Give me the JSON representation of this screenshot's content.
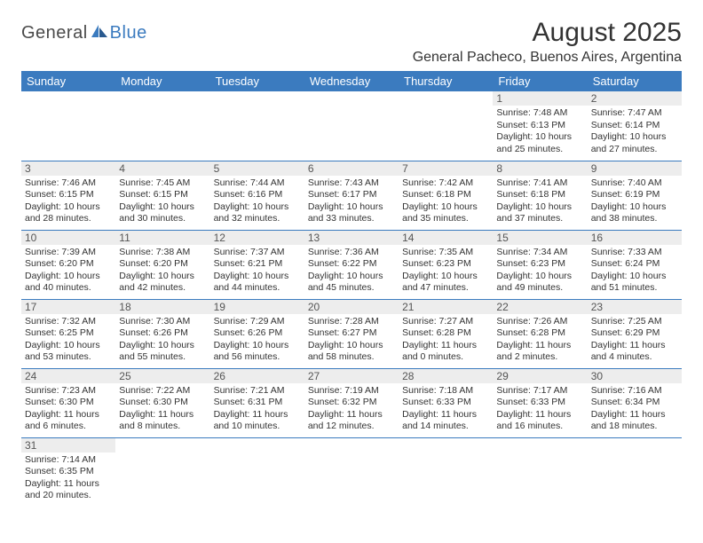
{
  "logo": {
    "text1": "General",
    "text2": "Blue"
  },
  "title": "August 2025",
  "location": "General Pacheco, Buenos Aires, Argentina",
  "colors": {
    "header_bg": "#3b7bbf",
    "header_text": "#ffffff",
    "daynum_bg": "#ededed",
    "daynum_text": "#555555",
    "body_text": "#333333",
    "divider": "#3b7bbf"
  },
  "days_of_week": [
    "Sunday",
    "Monday",
    "Tuesday",
    "Wednesday",
    "Thursday",
    "Friday",
    "Saturday"
  ],
  "weeks": [
    [
      null,
      null,
      null,
      null,
      null,
      {
        "n": "1",
        "sr": "7:48 AM",
        "ss": "6:13 PM",
        "dl": "10 hours and 25 minutes."
      },
      {
        "n": "2",
        "sr": "7:47 AM",
        "ss": "6:14 PM",
        "dl": "10 hours and 27 minutes."
      }
    ],
    [
      {
        "n": "3",
        "sr": "7:46 AM",
        "ss": "6:15 PM",
        "dl": "10 hours and 28 minutes."
      },
      {
        "n": "4",
        "sr": "7:45 AM",
        "ss": "6:15 PM",
        "dl": "10 hours and 30 minutes."
      },
      {
        "n": "5",
        "sr": "7:44 AM",
        "ss": "6:16 PM",
        "dl": "10 hours and 32 minutes."
      },
      {
        "n": "6",
        "sr": "7:43 AM",
        "ss": "6:17 PM",
        "dl": "10 hours and 33 minutes."
      },
      {
        "n": "7",
        "sr": "7:42 AM",
        "ss": "6:18 PM",
        "dl": "10 hours and 35 minutes."
      },
      {
        "n": "8",
        "sr": "7:41 AM",
        "ss": "6:18 PM",
        "dl": "10 hours and 37 minutes."
      },
      {
        "n": "9",
        "sr": "7:40 AM",
        "ss": "6:19 PM",
        "dl": "10 hours and 38 minutes."
      }
    ],
    [
      {
        "n": "10",
        "sr": "7:39 AM",
        "ss": "6:20 PM",
        "dl": "10 hours and 40 minutes."
      },
      {
        "n": "11",
        "sr": "7:38 AM",
        "ss": "6:20 PM",
        "dl": "10 hours and 42 minutes."
      },
      {
        "n": "12",
        "sr": "7:37 AM",
        "ss": "6:21 PM",
        "dl": "10 hours and 44 minutes."
      },
      {
        "n": "13",
        "sr": "7:36 AM",
        "ss": "6:22 PM",
        "dl": "10 hours and 45 minutes."
      },
      {
        "n": "14",
        "sr": "7:35 AM",
        "ss": "6:23 PM",
        "dl": "10 hours and 47 minutes."
      },
      {
        "n": "15",
        "sr": "7:34 AM",
        "ss": "6:23 PM",
        "dl": "10 hours and 49 minutes."
      },
      {
        "n": "16",
        "sr": "7:33 AM",
        "ss": "6:24 PM",
        "dl": "10 hours and 51 minutes."
      }
    ],
    [
      {
        "n": "17",
        "sr": "7:32 AM",
        "ss": "6:25 PM",
        "dl": "10 hours and 53 minutes."
      },
      {
        "n": "18",
        "sr": "7:30 AM",
        "ss": "6:26 PM",
        "dl": "10 hours and 55 minutes."
      },
      {
        "n": "19",
        "sr": "7:29 AM",
        "ss": "6:26 PM",
        "dl": "10 hours and 56 minutes."
      },
      {
        "n": "20",
        "sr": "7:28 AM",
        "ss": "6:27 PM",
        "dl": "10 hours and 58 minutes."
      },
      {
        "n": "21",
        "sr": "7:27 AM",
        "ss": "6:28 PM",
        "dl": "11 hours and 0 minutes."
      },
      {
        "n": "22",
        "sr": "7:26 AM",
        "ss": "6:28 PM",
        "dl": "11 hours and 2 minutes."
      },
      {
        "n": "23",
        "sr": "7:25 AM",
        "ss": "6:29 PM",
        "dl": "11 hours and 4 minutes."
      }
    ],
    [
      {
        "n": "24",
        "sr": "7:23 AM",
        "ss": "6:30 PM",
        "dl": "11 hours and 6 minutes."
      },
      {
        "n": "25",
        "sr": "7:22 AM",
        "ss": "6:30 PM",
        "dl": "11 hours and 8 minutes."
      },
      {
        "n": "26",
        "sr": "7:21 AM",
        "ss": "6:31 PM",
        "dl": "11 hours and 10 minutes."
      },
      {
        "n": "27",
        "sr": "7:19 AM",
        "ss": "6:32 PM",
        "dl": "11 hours and 12 minutes."
      },
      {
        "n": "28",
        "sr": "7:18 AM",
        "ss": "6:33 PM",
        "dl": "11 hours and 14 minutes."
      },
      {
        "n": "29",
        "sr": "7:17 AM",
        "ss": "6:33 PM",
        "dl": "11 hours and 16 minutes."
      },
      {
        "n": "30",
        "sr": "7:16 AM",
        "ss": "6:34 PM",
        "dl": "11 hours and 18 minutes."
      }
    ],
    [
      {
        "n": "31",
        "sr": "7:14 AM",
        "ss": "6:35 PM",
        "dl": "11 hours and 20 minutes."
      },
      null,
      null,
      null,
      null,
      null,
      null
    ]
  ],
  "labels": {
    "sunrise": "Sunrise:",
    "sunset": "Sunset:",
    "daylight": "Daylight:"
  }
}
